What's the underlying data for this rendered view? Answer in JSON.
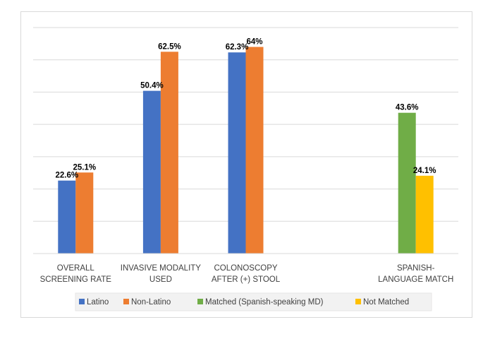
{
  "chart_data": {
    "type": "bar",
    "title": "",
    "xlabel": "",
    "ylabel": "",
    "ylim": [
      0,
      70
    ],
    "grid": true,
    "legend_position": "bottom",
    "categories": [
      [
        "OVERALL",
        "SCREENING RATE"
      ],
      [
        "INVASIVE MODALITY",
        "USED"
      ],
      [
        "COLONOSCOPY",
        "AFTER (+) STOOL"
      ],
      [
        "",
        ""
      ],
      [
        "SPANISH-",
        "LANGUAGE MATCH"
      ]
    ],
    "series": [
      {
        "name": "Latino",
        "color": "#4472c4",
        "values": [
          22.6,
          50.4,
          62.3,
          null,
          null
        ],
        "labels": [
          "22.6%",
          "50.4%",
          "62.3%",
          "",
          ""
        ]
      },
      {
        "name": "Non-Latino",
        "color": "#ed7d31",
        "values": [
          25.1,
          62.5,
          64,
          null,
          null
        ],
        "labels": [
          "25.1%",
          "62.5%",
          "64%",
          "",
          ""
        ]
      },
      {
        "name": "Matched (Spanish-speaking MD)",
        "color": "#70ad47",
        "values": [
          null,
          null,
          null,
          null,
          43.6
        ],
        "labels": [
          "",
          "",
          "",
          "",
          "43.6%"
        ]
      },
      {
        "name": "Not Matched",
        "color": "#ffc000",
        "values": [
          null,
          null,
          null,
          null,
          24.1
        ],
        "labels": [
          "",
          "",
          "",
          "",
          "24.1%"
        ]
      }
    ]
  }
}
